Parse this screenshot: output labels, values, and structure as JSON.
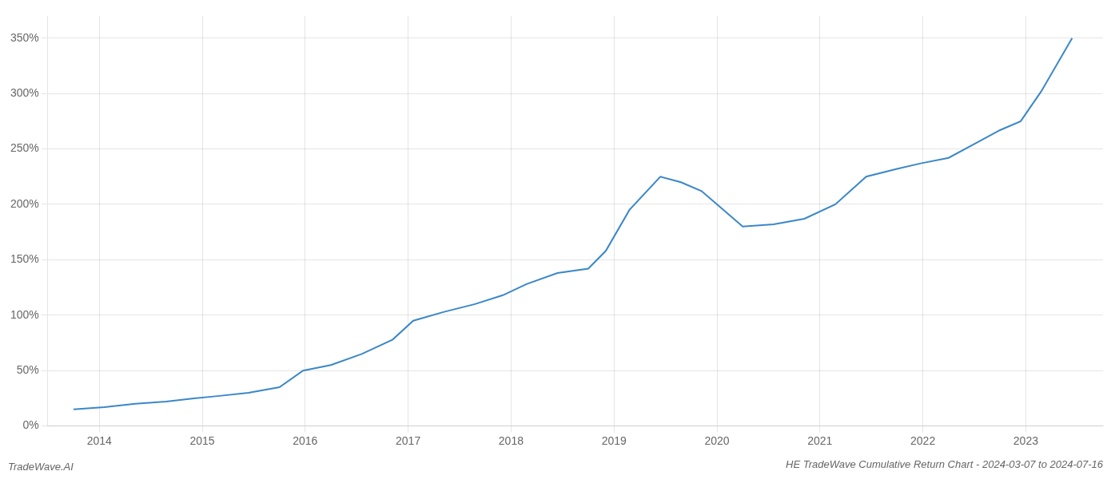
{
  "chart_data": {
    "type": "line",
    "title": "HE TradeWave Cumulative Return Chart - 2024-03-07 to 2024-07-16",
    "annotations": [
      {
        "text": "TradeWave.AI"
      }
    ],
    "x": [
      2013.75,
      2014.05,
      2014.35,
      2014.65,
      2014.92,
      2015.15,
      2015.45,
      2015.75,
      2015.98,
      2016.25,
      2016.55,
      2016.85,
      2017.05,
      2017.35,
      2017.65,
      2017.92,
      2018.15,
      2018.45,
      2018.75,
      2018.92,
      2019.15,
      2019.45,
      2019.65,
      2019.85,
      2020.05,
      2020.25,
      2020.55,
      2020.85,
      2021.15,
      2021.45,
      2021.75,
      2021.98,
      2022.25,
      2022.55,
      2022.75,
      2022.95,
      2023.15,
      2023.45
    ],
    "values": [
      15,
      17,
      20,
      22,
      25,
      27,
      30,
      35,
      50,
      55,
      65,
      78,
      95,
      103,
      110,
      118,
      128,
      138,
      142,
      158,
      195,
      225,
      220,
      212,
      196,
      180,
      182,
      187,
      200,
      225,
      232,
      237,
      242,
      257,
      267,
      275,
      302,
      350
    ],
    "color": "#3a87c8",
    "xlim": [
      2013.5,
      2023.75
    ],
    "xticks": [
      2014,
      2015,
      2016,
      2017,
      2018,
      2019,
      2020,
      2021,
      2022,
      2023
    ],
    "ylim": [
      0,
      370
    ],
    "yticks": [
      {
        "value": 0,
        "label": "0%"
      },
      {
        "value": 50,
        "label": "50%"
      },
      {
        "value": 100,
        "label": "100%"
      },
      {
        "value": 150,
        "label": "150%"
      },
      {
        "value": 200,
        "label": "200%"
      },
      {
        "value": 250,
        "label": "250%"
      },
      {
        "value": 300,
        "label": "300%"
      },
      {
        "value": 350,
        "label": "350%"
      }
    ],
    "grid": true
  }
}
